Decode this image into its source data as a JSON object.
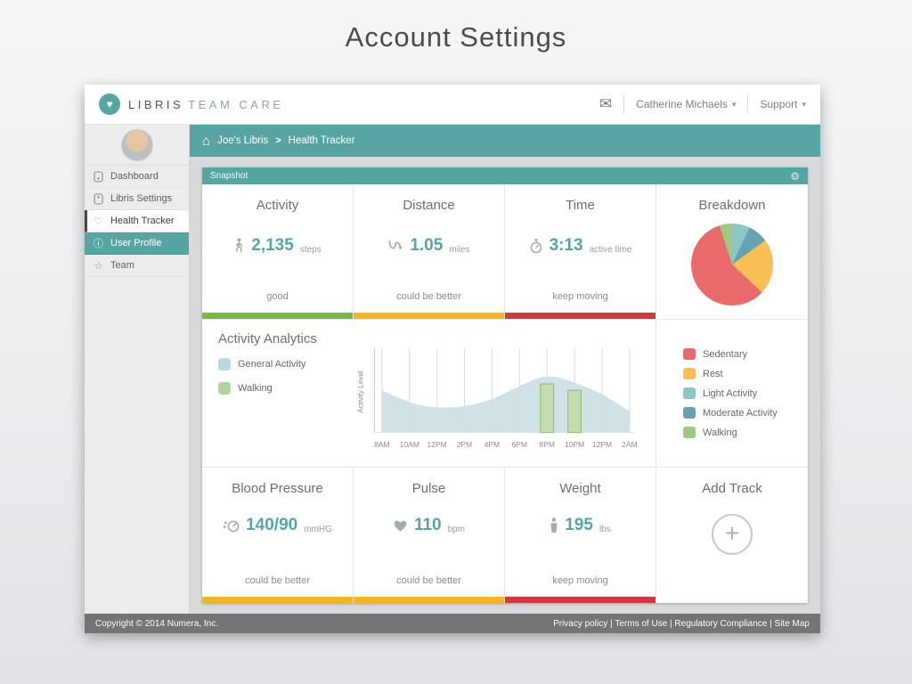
{
  "page": {
    "title": "Account Settings"
  },
  "header": {
    "brand_primary": "LIBRIS",
    "brand_secondary": "TEAM CARE",
    "user_menu": "Catherine Michaels",
    "support_menu": "Support"
  },
  "icons": {
    "logo": "♥",
    "envelope": "✉",
    "caret_down": "▾",
    "home": "⌂",
    "gear": "⚙",
    "heart": "♡",
    "info": "ⓘ",
    "star": "☆",
    "plus": "+",
    "breadcrumb_separator": ">"
  },
  "sidebar": {
    "items": [
      {
        "label": "Dashboard"
      },
      {
        "label": "Libris Settings"
      },
      {
        "label": "Health Tracker",
        "state": "active"
      },
      {
        "label": "User Profile",
        "state": "highlighted"
      },
      {
        "label": "Team"
      }
    ]
  },
  "breadcrumb": {
    "root": "Joe's Libris",
    "current": "Health Tracker"
  },
  "panel": {
    "title": "Snapshot"
  },
  "stats": {
    "activity": {
      "title": "Activity",
      "value": "2,135",
      "unit": "steps",
      "status": "good"
    },
    "distance": {
      "title": "Distance",
      "value": "1.05",
      "unit": "miles",
      "status": "could be better"
    },
    "time": {
      "title": "Time",
      "value": "3:13",
      "unit": "active time",
      "status": "keep moving"
    },
    "breakdown": {
      "title": "Breakdown"
    },
    "blood_pressure": {
      "title": "Blood Pressure",
      "value": "140/90",
      "unit": "mmHG",
      "status": "could be better"
    },
    "pulse": {
      "title": "Pulse",
      "value": "110",
      "unit": "bpm",
      "status": "could be better"
    },
    "weight": {
      "title": "Weight",
      "value": "195",
      "unit": "lbs",
      "status": "keep moving"
    },
    "add_track": {
      "title": "Add Track"
    }
  },
  "analytics": {
    "title": "Activity Analytics",
    "ylabel": "Activity Level",
    "legend": [
      {
        "label": "General Activity",
        "color": "#b9d7dd"
      },
      {
        "label": "Walking",
        "color": "#b0d39b"
      }
    ]
  },
  "breakdown_legend": [
    {
      "label": "Sedentary",
      "color": "#ea6a6c"
    },
    {
      "label": "Rest",
      "color": "#f9bf54"
    },
    {
      "label": "Light Activity",
      "color": "#8ec6c1"
    },
    {
      "label": "Moderate Activity",
      "color": "#67a2b4"
    },
    {
      "label": "Walking",
      "color": "#9fc983"
    }
  ],
  "footer": {
    "copyright": "Copyright © 2014 Numera, Inc.",
    "links": [
      "Privacy policy",
      "Terms of Use",
      "Regulatory Compliance",
      "Site Map"
    ]
  },
  "colors": {
    "teal": "#55a5a3",
    "green": "#7cb93f",
    "yellow": "#f6b71e",
    "red": "#d2393e"
  },
  "chart_data": [
    {
      "type": "pie",
      "title": "Breakdown",
      "slices": [
        {
          "label": "Light Activity",
          "value": 7,
          "color": "#8ec6c1"
        },
        {
          "label": "Moderate Activity",
          "value": 8,
          "color": "#67a2b4"
        },
        {
          "label": "Rest",
          "value": 22,
          "color": "#f9bf54"
        },
        {
          "label": "Sedentary",
          "value": 58,
          "color": "#ea6a6c"
        },
        {
          "label": "Walking",
          "value": 5,
          "color": "#9fc983"
        }
      ]
    },
    {
      "type": "area",
      "title": "Activity Analytics",
      "ylabel": "Activity Level",
      "x": [
        "8AM",
        "10AM",
        "12PM",
        "2PM",
        "4PM",
        "6PM",
        "8PM",
        "10PM",
        "12PM",
        "2AM"
      ],
      "ylim": [
        0,
        100
      ],
      "grid": "vertical",
      "series": [
        {
          "name": "General Activity",
          "type": "area",
          "color": "#ccdfe3",
          "values": [
            52,
            36,
            30,
            32,
            40,
            58,
            72,
            62,
            48,
            26
          ]
        },
        {
          "name": "Walking",
          "type": "bar",
          "color": "#c3dcae",
          "border": "#8fbf72",
          "values": [
            0,
            0,
            0,
            0,
            0,
            0,
            60,
            52,
            0,
            0
          ]
        }
      ]
    }
  ]
}
